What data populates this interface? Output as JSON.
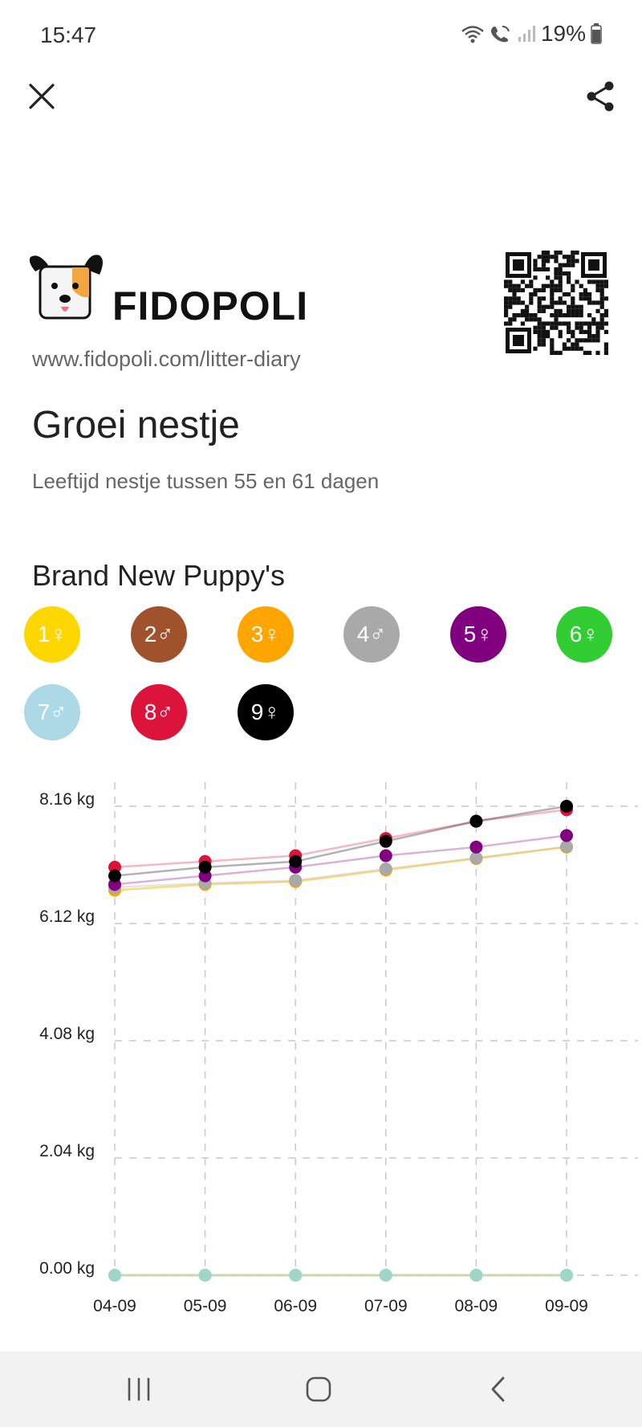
{
  "status_bar": {
    "time": "15:47",
    "battery": "19%"
  },
  "brand": {
    "name": "FIDOPOLI",
    "url": "www.fidopoli.com/litter-diary"
  },
  "page": {
    "title": "Groei nestje",
    "subtitle": "Leeftijd nestje tussen 55 en 61 dagen",
    "litter_name": "Brand New Puppy's"
  },
  "puppies": [
    {
      "label": "1♀",
      "color": "#FFD700"
    },
    {
      "label": "2♂",
      "color": "#A0522D"
    },
    {
      "label": "3♀",
      "color": "#FFA500"
    },
    {
      "label": "4♂",
      "color": "#A9A9A9"
    },
    {
      "label": "5♀",
      "color": "#800080"
    },
    {
      "label": "6♀",
      "color": "#32CD32"
    },
    {
      "label": "7♂",
      "color": "#ADD8E6"
    },
    {
      "label": "8♂",
      "color": "#DC143C"
    },
    {
      "label": "9♀",
      "color": "#000000"
    }
  ],
  "icons": {
    "close": "close-icon",
    "share": "share-icon",
    "nav_recents": "recents-icon",
    "nav_home": "home-icon",
    "nav_back": "back-icon"
  },
  "chart_data": {
    "type": "line",
    "x": [
      "04-09",
      "05-09",
      "06-09",
      "07-09",
      "08-09",
      "09-09"
    ],
    "y_ticks": [
      "8.16 kg",
      "6.12 kg",
      "4.08 kg",
      "2.04 kg",
      "0.00 kg"
    ],
    "y_tick_values": [
      8.16,
      6.12,
      4.08,
      2.04,
      0
    ],
    "ylim": [
      0,
      8.16
    ],
    "grid": true,
    "series": [
      {
        "color": "#FFD700",
        "values": [
          6.7,
          6.8,
          6.85,
          7.05,
          7.25,
          7.45
        ]
      },
      {
        "color": "#FFA500",
        "values": [
          6.7,
          6.8,
          6.85,
          7.05,
          7.25,
          7.45
        ]
      },
      {
        "color": "#A9A9A9",
        "values": [
          6.75,
          6.82,
          6.87,
          7.07,
          7.26,
          7.46
        ]
      },
      {
        "color": "#800080",
        "values": [
          6.8,
          6.95,
          7.1,
          7.3,
          7.45,
          7.65
        ]
      },
      {
        "color": "#DC143C",
        "values": [
          7.1,
          7.2,
          7.3,
          7.6,
          7.9,
          8.1
        ]
      },
      {
        "color": "#000000",
        "values": [
          6.95,
          7.1,
          7.2,
          7.55,
          7.9,
          8.16
        ]
      },
      {
        "color": "#A0522D",
        "values": [
          0,
          0,
          0,
          0,
          0,
          0
        ]
      },
      {
        "color": "#32CD32",
        "values": [
          0,
          0,
          0,
          0,
          0,
          0
        ]
      },
      {
        "color": "#ADD8E6",
        "values": [
          0,
          0,
          0,
          0,
          0,
          0
        ]
      }
    ]
  }
}
